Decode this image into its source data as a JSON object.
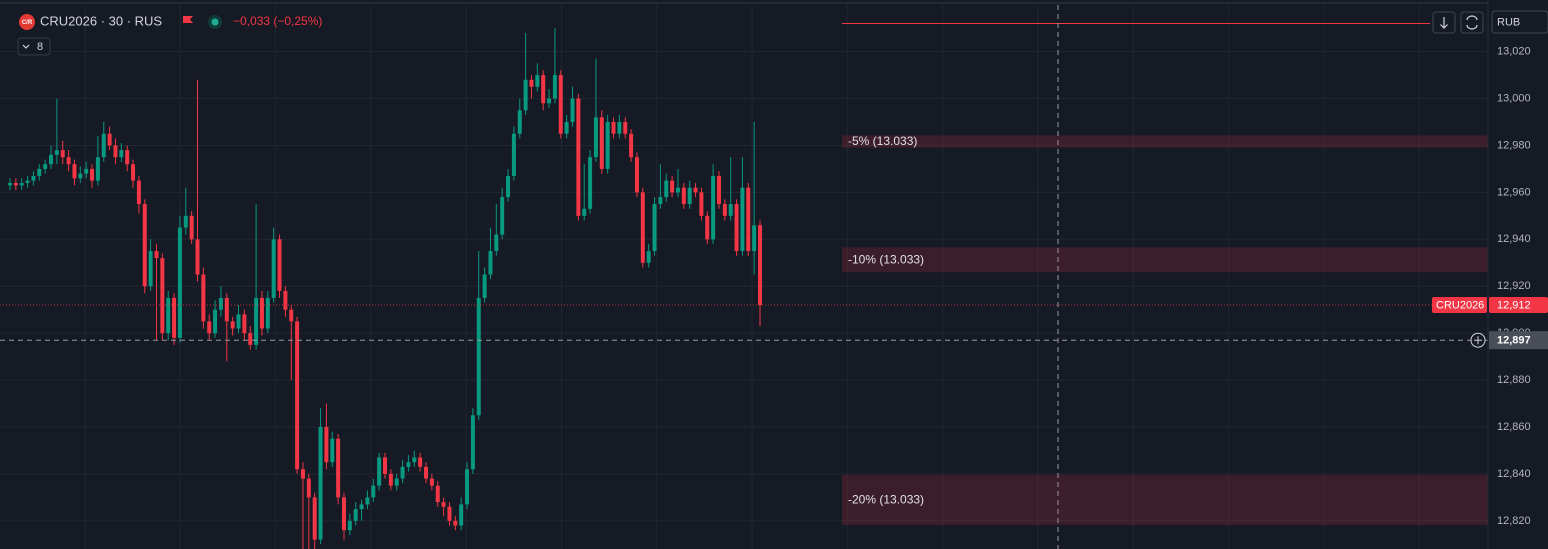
{
  "chart_data": {
    "type": "candlestick",
    "logo_text": "C/R",
    "title": "CRU2026 · 30 · RUS",
    "change_label": "−0,033 (−0,25%)",
    "indicator_badge": "8",
    "currency": "RUB",
    "up_color": "#089981",
    "down_color": "#f23645",
    "ylim": [
      12808,
      13042
    ],
    "yticks": [
      {
        "value": 12820,
        "label": "12,820"
      },
      {
        "value": 12840,
        "label": "12,840"
      },
      {
        "value": 12860,
        "label": "12,860"
      },
      {
        "value": 12880,
        "label": "12,880"
      },
      {
        "value": 12900,
        "label": "12,900"
      },
      {
        "value": 12920,
        "label": "12,920"
      },
      {
        "value": 12940,
        "label": "12,940"
      },
      {
        "value": 12960,
        "label": "12,960"
      },
      {
        "value": 12980,
        "label": "12,980"
      },
      {
        "value": 13000,
        "label": "13,000"
      },
      {
        "value": 13020,
        "label": "13,020"
      }
    ],
    "grid": true,
    "last_price_name": "CRU2026",
    "last_price": {
      "value": 12912,
      "label": "12,912"
    },
    "crosshair_price": {
      "value": 12897,
      "label": "12,897"
    },
    "alert_line": 13032,
    "zones": [
      {
        "label": "-5% (13.033)",
        "top": 12984.3,
        "bottom": 12979.1
      },
      {
        "label": "-10% (13.033)",
        "top": 12936.6,
        "bottom": 12926
      },
      {
        "label": "-20% (13.033)",
        "top": 12839.6,
        "bottom": 12818.3
      }
    ],
    "open": [
      12963,
      12964,
      12963,
      12964,
      12965,
      12967,
      12970,
      12972,
      12976,
      12978,
      12975,
      12972,
      12966,
      12968,
      12970,
      12965,
      12975,
      12985,
      12980,
      12975,
      12978,
      12972,
      12965,
      12955,
      12920,
      12935,
      12932,
      12900,
      12915,
      12898,
      12945,
      12950,
      12940,
      12925,
      12905,
      12900,
      12910,
      12915,
      12905,
      12902,
      12908,
      12900,
      12895,
      12915,
      12902,
      12915,
      12940,
      12918,
      12910,
      12905,
      12842,
      12838,
      12830,
      12812,
      12860,
      12845,
      12855,
      12830,
      12816,
      12820,
      12825,
      12827,
      12830,
      12835,
      12847,
      12840,
      12835,
      12838,
      12843,
      12845,
      12847,
      12843,
      12838,
      12835,
      12828,
      12826,
      12820,
      12818,
      12827,
      12842,
      12865,
      12915,
      12925,
      12935,
      12942,
      12958,
      12967,
      12985,
      12995,
      13008,
      13005,
      13010,
      12998,
      13000,
      13010,
      12985,
      12990,
      13000,
      12950,
      12953,
      12975,
      12992,
      12970,
      12990,
      12985,
      12990,
      12985,
      12975,
      12960,
      12930,
      12935,
      12955,
      12958,
      12965,
      12960,
      12962,
      12955,
      12962,
      12960,
      12950,
      12940,
      12967,
      12955,
      12950,
      12955,
      12935,
      12962,
      12935,
      12946
    ],
    "high": [
      12966,
      12966,
      12966,
      12967,
      12969,
      12972,
      12974,
      12980,
      13000,
      12982,
      12978,
      12974,
      12971,
      12973,
      12972,
      12984,
      12990,
      12988,
      12983,
      12981,
      12980,
      12974,
      12967,
      12957,
      12940,
      12938,
      12934,
      12918,
      12917,
      12950,
      12962,
      12952,
      13008,
      12928,
      12908,
      12914,
      12920,
      12917,
      12907,
      12912,
      12910,
      12903,
      12955,
      12918,
      12918,
      12945,
      12942,
      12920,
      12912,
      12907,
      12845,
      12840,
      12832,
      12868,
      12870,
      12858,
      12857,
      12832,
      12823,
      12828,
      12829,
      12833,
      12838,
      12849,
      12849,
      12842,
      12840,
      12846,
      12848,
      12850,
      12849,
      12845,
      12840,
      12837,
      12830,
      12828,
      12822,
      12830,
      12845,
      12868,
      12935,
      12928,
      12945,
      12955,
      12962,
      12970,
      12988,
      13000,
      13028,
      13010,
      13015,
      13012,
      13004,
      13030,
      13012,
      12993,
      13005,
      13002,
      12972,
      12978,
      13017,
      12995,
      12993,
      12992,
      12993,
      12992,
      12987,
      12977,
      12962,
      12938,
      12958,
      12972,
      12968,
      12967,
      12970,
      12964,
      12965,
      12964,
      12962,
      12952,
      12972,
      12969,
      12957,
      12975,
      12957,
      12975,
      12964,
      12990,
      12948
    ],
    "low": [
      12961,
      12961,
      12961,
      12962,
      12963,
      12965,
      12968,
      12970,
      12972,
      12972,
      12969,
      12963,
      12964,
      12966,
      12962,
      12963,
      12973,
      12978,
      12972,
      12973,
      12969,
      12962,
      12951,
      12917,
      12918,
      12897,
      12897,
      12897,
      12895,
      12896,
      12942,
      12938,
      12922,
      12902,
      12897,
      12898,
      12907,
      12888,
      12899,
      12900,
      12897,
      12893,
      12893,
      12899,
      12900,
      12913,
      12915,
      12907,
      12880,
      12840,
      12808,
      12808,
      12808,
      12810,
      12842,
      12843,
      12827,
      12812,
      12814,
      12818,
      12820,
      12825,
      12828,
      12833,
      12838,
      12833,
      12833,
      12836,
      12841,
      12843,
      12841,
      12836,
      12833,
      12826,
      12822,
      12818,
      12816,
      12816,
      12825,
      12840,
      12863,
      12913,
      12923,
      12933,
      12940,
      12956,
      12965,
      12983,
      12993,
      13000,
      13003,
      12995,
      12996,
      12998,
      12983,
      12983,
      12988,
      12948,
      12948,
      12951,
      12973,
      12968,
      12968,
      12983,
      12983,
      12983,
      12973,
      12958,
      12928,
      12928,
      12933,
      12953,
      12956,
      12958,
      12958,
      12953,
      12953,
      12958,
      12948,
      12938,
      12938,
      12953,
      12948,
      12948,
      12933,
      12933,
      12933,
      12925,
      12903
    ],
    "close": [
      12964,
      12963,
      12964,
      12965,
      12967,
      12970,
      12972,
      12976,
      12978,
      12975,
      12972,
      12966,
      12968,
      12970,
      12965,
      12975,
      12985,
      12980,
      12975,
      12978,
      12972,
      12965,
      12955,
      12920,
      12935,
      12932,
      12900,
      12915,
      12898,
      12945,
      12950,
      12940,
      12925,
      12905,
      12900,
      12910,
      12915,
      12905,
      12902,
      12908,
      12900,
      12895,
      12915,
      12902,
      12915,
      12940,
      12918,
      12910,
      12905,
      12842,
      12838,
      12830,
      12812,
      12860,
      12845,
      12855,
      12830,
      12816,
      12820,
      12825,
      12827,
      12830,
      12835,
      12847,
      12840,
      12835,
      12838,
      12843,
      12845,
      12847,
      12843,
      12838,
      12835,
      12828,
      12826,
      12820,
      12818,
      12827,
      12842,
      12865,
      12915,
      12925,
      12935,
      12942,
      12958,
      12967,
      12985,
      12995,
      13008,
      13005,
      13010,
      12998,
      13000,
      13010,
      12985,
      12990,
      13000,
      12950,
      12953,
      12975,
      12992,
      12970,
      12990,
      12985,
      12990,
      12985,
      12975,
      12960,
      12930,
      12935,
      12955,
      12958,
      12965,
      12960,
      12962,
      12955,
      12962,
      12960,
      12950,
      12940,
      12967,
      12955,
      12950,
      12955,
      12935,
      12962,
      12935,
      12946,
      12912
    ]
  }
}
